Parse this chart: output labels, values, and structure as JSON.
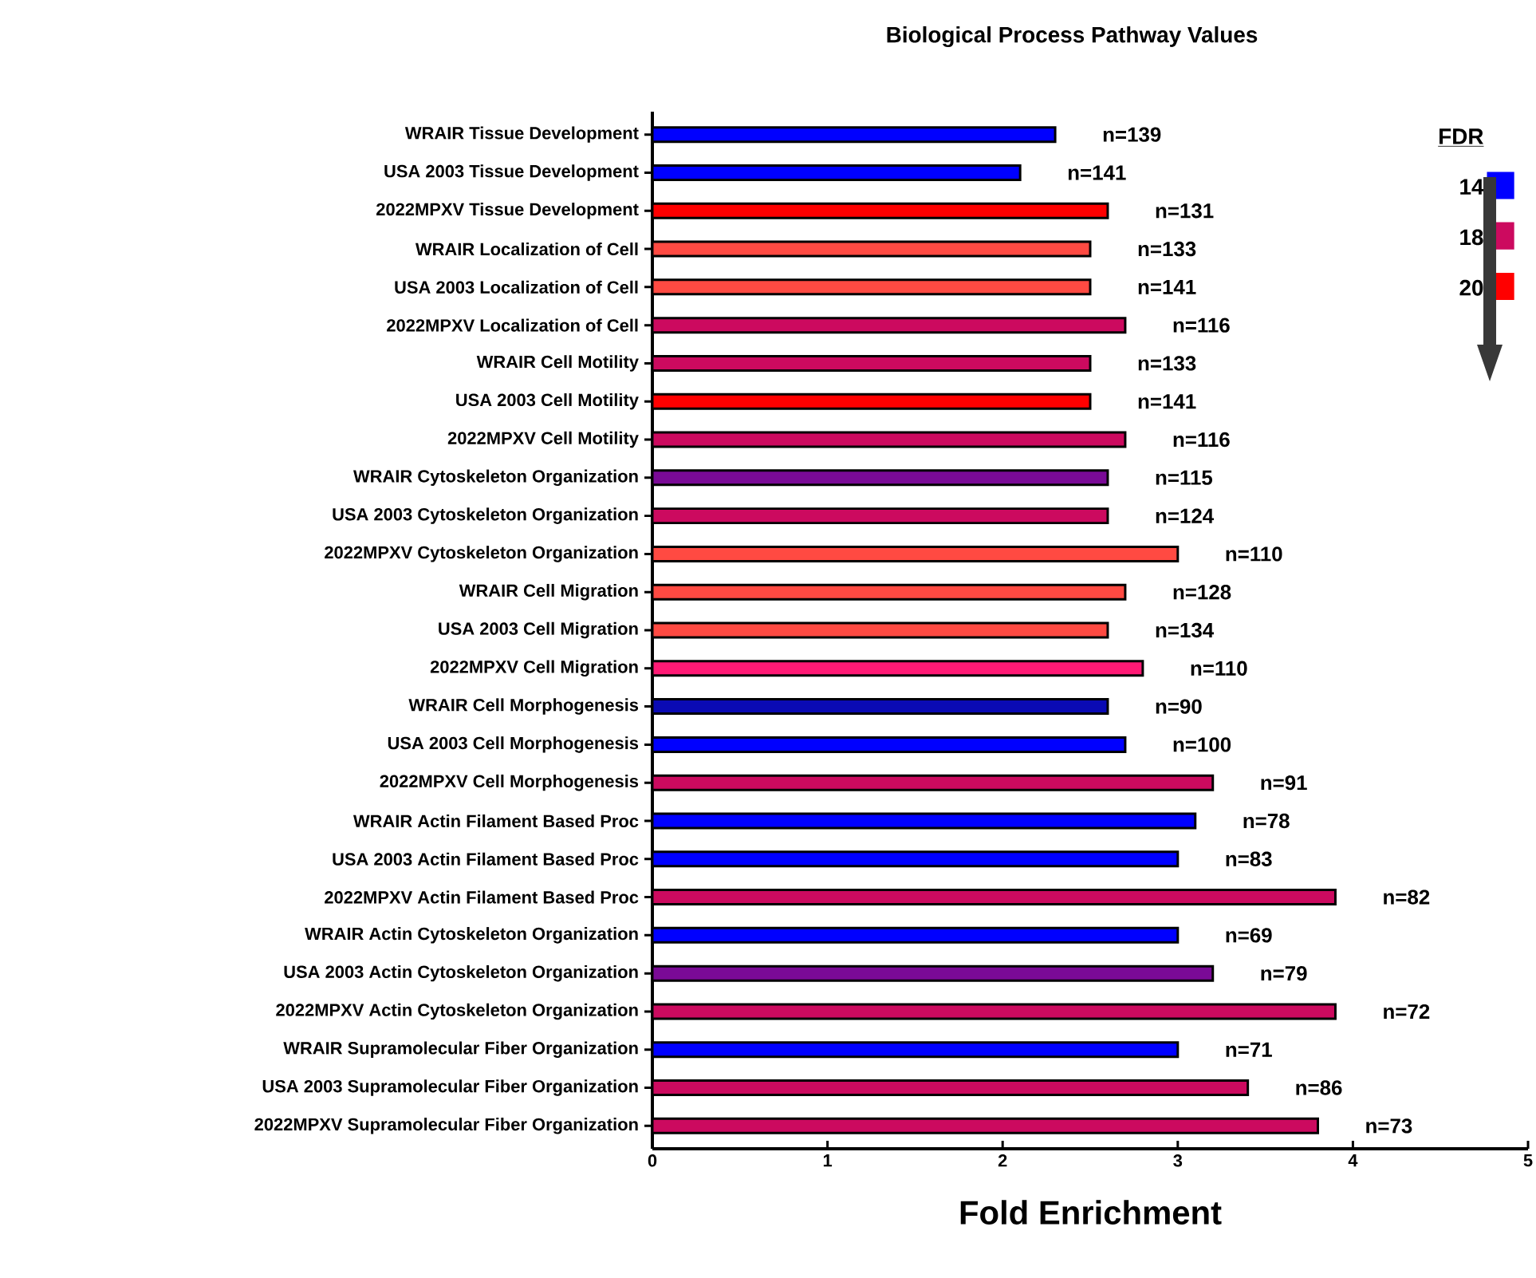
{
  "chart_data": {
    "type": "bar",
    "orientation": "horizontal",
    "title": "Biological Process Pathway Values",
    "xlabel": "Fold Enrichment",
    "legend_title": "FDR",
    "legend": "top right",
    "categories": [
      "WRAIR Tissue Development",
      "USA 2003 Tissue Development",
      "2022MPXV Tissue Development",
      "WRAIR Localization of Cell",
      "USA 2003 Localization of Cell",
      "2022MPXV Localization of Cell",
      "WRAIR Cell Motility",
      "USA 2003 Cell Motility",
      "2022MPXV Cell Motility",
      "WRAIR Cytoskeleton Organization",
      "USA 2003 Cytoskeleton Organization",
      "2022MPXV Cytoskeleton Organization",
      "WRAIR Cell Migration",
      "USA 2003 Cell Migration",
      "2022MPXV Cell Migration",
      "WRAIR Cell Morphogenesis",
      "USA 2003 Cell Morphogenesis",
      "2022MPXV Cell Morphogenesis",
      "WRAIR Actin Filament Based Proc",
      "USA 2003 Actin Filament Based Proc",
      "2022MPXV Actin Filament Based Proc",
      "WRAIR Actin Cytoskeleton Organization",
      "USA 2003 Actin Cytoskeleton Organization",
      "2022MPXV Actin Cytoskeleton Organization",
      "WRAIR Supramolecular Fiber Organization",
      "USA 2003 Supramolecular Fiber Organization",
      "2022MPXV Supramolecular Fiber Organization"
    ],
    "series": [
      {
        "name": "14",
        "color": "#0000ff",
        "values": [
          2.3,
          2.1,
          null,
          null,
          null,
          null,
          null,
          null,
          null,
          null,
          null,
          null,
          null,
          null,
          null,
          null,
          2.7,
          null,
          3.1,
          3.0,
          null,
          3.0,
          null,
          null,
          3.0,
          null,
          null
        ]
      },
      {
        "name": "18",
        "color": "#cc0a5f",
        "values": [
          null,
          null,
          null,
          null,
          null,
          2.7,
          2.5,
          null,
          2.7,
          null,
          2.6,
          null,
          null,
          null,
          null,
          null,
          null,
          3.2,
          null,
          null,
          3.9,
          null,
          null,
          3.9,
          null,
          3.4,
          3.8
        ]
      },
      {
        "name": "20",
        "color": "#ff0000",
        "values": [
          null,
          null,
          2.6,
          null,
          null,
          null,
          null,
          2.5,
          null,
          null,
          null,
          null,
          null,
          null,
          null,
          null,
          null,
          null,
          null,
          null,
          null,
          null,
          null,
          null,
          null,
          null,
          null
        ]
      },
      {
        "color": "#ff4a42",
        "values": [
          null,
          null,
          null,
          2.5,
          2.5,
          null,
          null,
          null,
          null,
          null,
          null,
          3.0,
          2.7,
          2.6,
          null,
          null,
          null,
          null,
          null,
          null,
          null,
          null,
          null,
          null,
          null,
          null,
          null
        ]
      },
      {
        "color": "#7a0a96",
        "values": [
          null,
          null,
          null,
          null,
          null,
          null,
          null,
          null,
          null,
          2.6,
          null,
          null,
          null,
          null,
          null,
          null,
          null,
          null,
          null,
          null,
          null,
          null,
          3.2,
          null,
          null,
          null,
          null
        ]
      },
      {
        "color": "#ff1a75",
        "values": [
          null,
          null,
          null,
          null,
          null,
          null,
          null,
          null,
          null,
          null,
          null,
          null,
          null,
          null,
          2.8,
          null,
          null,
          null,
          null,
          null,
          null,
          null,
          null,
          null,
          null,
          null,
          null
        ]
      },
      {
        "color": "#0a0ab4",
        "values": [
          null,
          null,
          null,
          null,
          null,
          null,
          null,
          null,
          null,
          null,
          null,
          null,
          null,
          null,
          null,
          2.6,
          null,
          null,
          null,
          null,
          null,
          null,
          null,
          null,
          null,
          null,
          null
        ]
      }
    ],
    "annotations": [
      "n=139",
      "n=141",
      "n=131",
      "n=133",
      "n=141",
      "n=116",
      "n=133",
      "n=141",
      "n=116",
      "n=115",
      "n=124",
      "n=110",
      "n=128",
      "n=134",
      "n=110",
      "n=90",
      "n=100",
      "n=91",
      "n=78",
      "n=83",
      "n=82",
      "n=69",
      "n=79",
      "n=72",
      "n=71",
      "n=86",
      "n=73"
    ],
    "xlim": [
      0,
      5
    ],
    "xticks": [
      0,
      1,
      2,
      3,
      4,
      5
    ]
  }
}
